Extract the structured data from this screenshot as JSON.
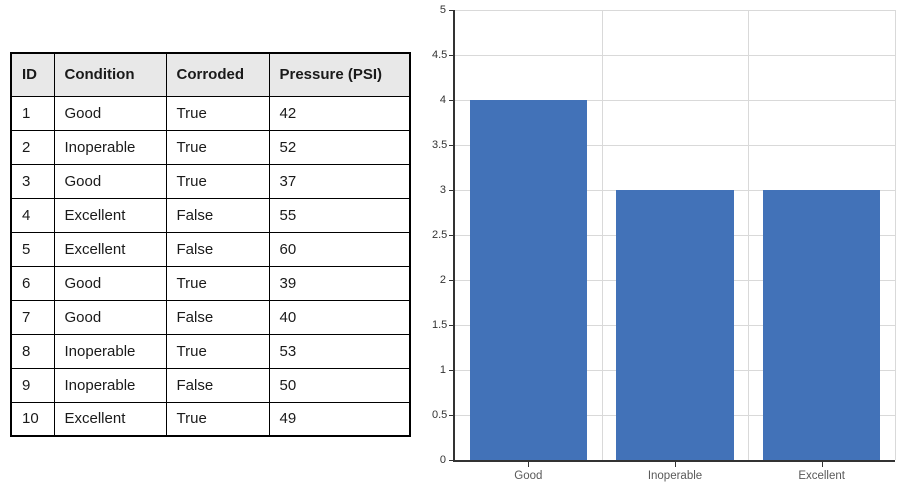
{
  "table": {
    "headers": [
      "ID",
      "Condition",
      "Corroded",
      "Pressure (PSI)"
    ],
    "rows": [
      [
        "1",
        "Good",
        "True",
        "42"
      ],
      [
        "2",
        "Inoperable",
        "True",
        "52"
      ],
      [
        "3",
        "Good",
        "True",
        "37"
      ],
      [
        "4",
        "Excellent",
        "False",
        "55"
      ],
      [
        "5",
        "Excellent",
        "False",
        "60"
      ],
      [
        "6",
        "Good",
        "True",
        "39"
      ],
      [
        "7",
        "Good",
        "False",
        "40"
      ],
      [
        "8",
        "Inoperable",
        "True",
        "53"
      ],
      [
        "9",
        "Inoperable",
        "False",
        "50"
      ],
      [
        "10",
        "Excellent",
        "True",
        "49"
      ]
    ],
    "header_bg": "#e8e8e8",
    "border_color": "#000000"
  },
  "chart_data": {
    "type": "bar",
    "categories": [
      "Good",
      "Inoperable",
      "Excellent"
    ],
    "values": [
      4,
      3,
      3
    ],
    "title": "",
    "xlabel": "",
    "ylabel": "",
    "ylim": [
      0,
      5
    ],
    "ytick_step": 0.5,
    "yticks": [
      "0",
      "0.5",
      "1",
      "1.5",
      "2",
      "2.5",
      "3",
      "3.5",
      "4",
      "4.5",
      "5"
    ],
    "bar_color": "#4272b8",
    "gridline_color": "#d9d9d9",
    "axis_color": "#333333",
    "grid": true,
    "legend_position": "none",
    "bar_width_fraction": 0.8
  }
}
